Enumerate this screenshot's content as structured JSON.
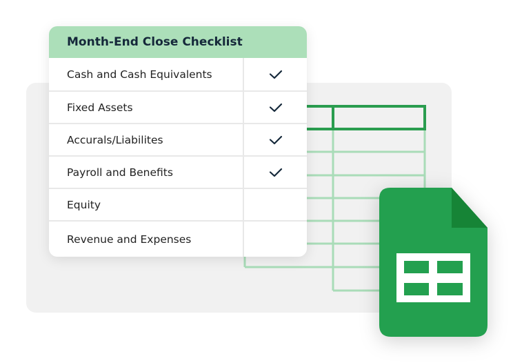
{
  "checklist": {
    "title": "Month-End Close Checklist",
    "items": [
      {
        "label": "Cash and Cash Equivalents",
        "checked": true
      },
      {
        "label": "Fixed Assets",
        "checked": true
      },
      {
        "label": "Accurals/Liabilites",
        "checked": true
      },
      {
        "label": "Payroll and Benefits",
        "checked": true
      },
      {
        "label": "Equity",
        "checked": false
      },
      {
        "label": "Revenue and Expenses",
        "checked": false
      }
    ]
  },
  "colors": {
    "header": "#acdfb9",
    "sheets_green": "#23a04f",
    "sheets_fold": "#168436",
    "grid_dark": "#2a9d4f",
    "grid_light": "#a9dcb8",
    "check": "#15283a"
  },
  "icons": {
    "app": "google-sheets-icon",
    "check": "checkmark-icon"
  }
}
